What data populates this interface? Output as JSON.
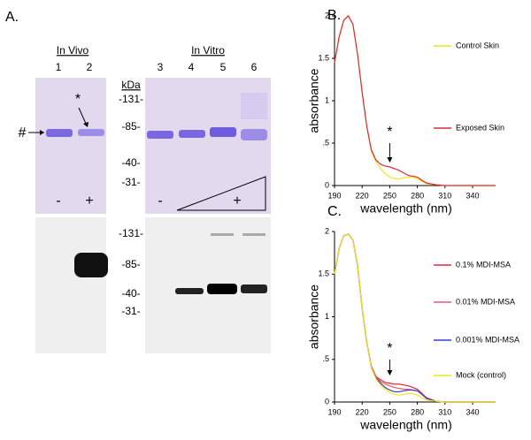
{
  "panel_a": {
    "label": "A.",
    "groups": [
      "In Vivo",
      "In Vitro"
    ],
    "lanes": [
      "1",
      "2",
      "3",
      "4",
      "5",
      "6"
    ],
    "kda": "kDa",
    "markers_top": [
      "-131-",
      "-85-",
      "-40-",
      "-31-"
    ],
    "markers_bottom": [
      "-131-",
      "-85-",
      "-40-",
      "-31-"
    ],
    "hash": "#",
    "star": "*",
    "signs": [
      "-",
      "+",
      "-",
      "+"
    ]
  },
  "chart_data": [
    {
      "type": "line",
      "panel_label": "B.",
      "xlabel": "wavelength (nm)",
      "ylabel": "absorbance",
      "x": [
        190,
        195,
        200,
        205,
        210,
        215,
        220,
        225,
        230,
        235,
        240,
        245,
        250,
        255,
        260,
        265,
        270,
        275,
        280,
        285,
        290,
        300,
        310,
        330,
        365
      ],
      "series": [
        {
          "name": "Control Skin",
          "color": "#f2e61c",
          "values": [
            1.45,
            1.75,
            1.95,
            2.0,
            1.9,
            1.55,
            1.1,
            0.7,
            0.4,
            0.28,
            0.2,
            0.14,
            0.1,
            0.08,
            0.08,
            0.09,
            0.1,
            0.1,
            0.08,
            0.05,
            0.02,
            0.01,
            0,
            0,
            0
          ]
        },
        {
          "name": "Exposed Skin",
          "color": "#e0283a",
          "values": [
            1.45,
            1.75,
            1.95,
            2.0,
            1.9,
            1.55,
            1.1,
            0.7,
            0.42,
            0.3,
            0.25,
            0.23,
            0.22,
            0.2,
            0.18,
            0.15,
            0.12,
            0.11,
            0.1,
            0.06,
            0.03,
            0.01,
            0,
            0,
            0
          ]
        }
      ],
      "xlim": [
        190,
        365
      ],
      "ylim": [
        0,
        2
      ],
      "xticks": [
        190,
        220,
        250,
        280,
        310,
        340
      ],
      "yticks": [
        0,
        {
          "value": 0.5,
          "label": ".5"
        },
        1,
        1.5,
        2
      ],
      "annotation": {
        "text": "*",
        "x": 250
      }
    },
    {
      "type": "line",
      "panel_label": "C.",
      "xlabel": "wavelength (nm)",
      "ylabel": "absorbance",
      "x": [
        190,
        195,
        200,
        205,
        210,
        215,
        220,
        225,
        230,
        235,
        240,
        245,
        250,
        255,
        260,
        265,
        270,
        275,
        280,
        285,
        290,
        300,
        310,
        330,
        365
      ],
      "series": [
        {
          "name": "0.1% MDI-MSA",
          "color": "#e0283a",
          "values": [
            1.5,
            1.8,
            1.95,
            1.97,
            1.9,
            1.6,
            1.1,
            0.7,
            0.42,
            0.3,
            0.26,
            0.23,
            0.22,
            0.21,
            0.21,
            0.2,
            0.19,
            0.17,
            0.15,
            0.1,
            0.05,
            0.01,
            0,
            0,
            0
          ]
        },
        {
          "name": "0.01% MDI-MSA",
          "color": "#e35a6e",
          "values": [
            1.5,
            1.8,
            1.95,
            1.97,
            1.9,
            1.6,
            1.1,
            0.7,
            0.41,
            0.29,
            0.24,
            0.21,
            0.19,
            0.17,
            0.16,
            0.15,
            0.15,
            0.14,
            0.13,
            0.09,
            0.04,
            0.01,
            0,
            0,
            0
          ]
        },
        {
          "name": "0.001% MDI-MSA",
          "color": "#3a3fc8",
          "values": [
            1.5,
            1.8,
            1.95,
            1.97,
            1.9,
            1.6,
            1.1,
            0.7,
            0.4,
            0.28,
            0.22,
            0.17,
            0.14,
            0.12,
            0.12,
            0.13,
            0.14,
            0.14,
            0.13,
            0.09,
            0.04,
            0.01,
            0,
            0,
            0
          ]
        },
        {
          "name": "Mock (control)",
          "color": "#f2e61c",
          "values": [
            1.5,
            1.8,
            1.95,
            1.97,
            1.9,
            1.6,
            1.1,
            0.7,
            0.4,
            0.27,
            0.2,
            0.15,
            0.11,
            0.09,
            0.08,
            0.09,
            0.1,
            0.1,
            0.08,
            0.05,
            0.02,
            0.01,
            0,
            0,
            0
          ]
        }
      ],
      "xlim": [
        190,
        365
      ],
      "ylim": [
        0,
        2
      ],
      "xticks": [
        190,
        220,
        250,
        280,
        310,
        340
      ],
      "yticks": [
        0,
        {
          "value": 0.5,
          "label": ".5"
        },
        1,
        1.5,
        2
      ],
      "annotation": {
        "text": "*",
        "x": 250
      }
    }
  ]
}
